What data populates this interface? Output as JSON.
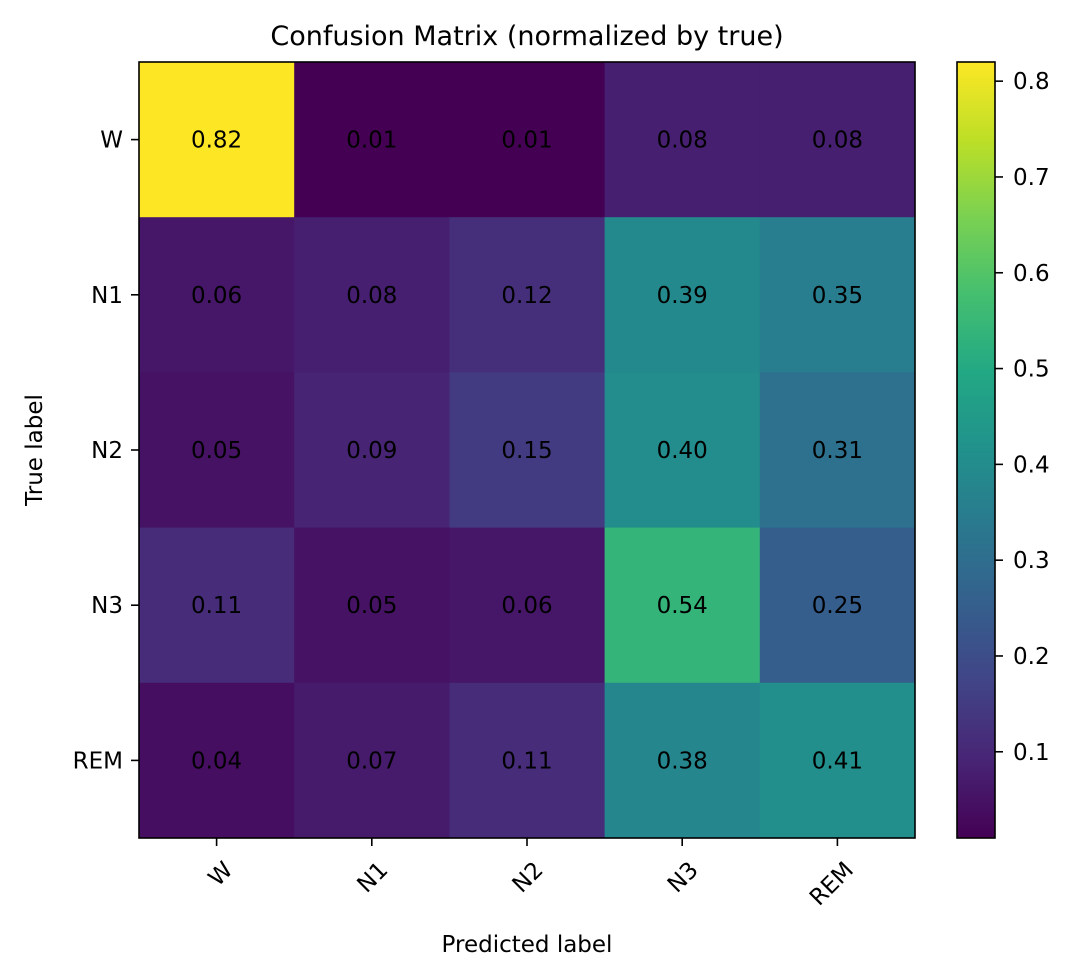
{
  "chart_data": {
    "type": "heatmap",
    "title": "Confusion Matrix (normalized by true)",
    "xlabel": "Predicted label",
    "ylabel": "True label",
    "x_categories": [
      "W",
      "N1",
      "N2",
      "N3",
      "REM"
    ],
    "y_categories": [
      "W",
      "N1",
      "N2",
      "N3",
      "REM"
    ],
    "values": [
      [
        0.82,
        0.01,
        0.01,
        0.08,
        0.08
      ],
      [
        0.06,
        0.08,
        0.12,
        0.39,
        0.35
      ],
      [
        0.05,
        0.09,
        0.15,
        0.4,
        0.31
      ],
      [
        0.11,
        0.05,
        0.06,
        0.54,
        0.25
      ],
      [
        0.04,
        0.07,
        0.11,
        0.38,
        0.41
      ]
    ],
    "value_labels": [
      [
        "0.82",
        "0.01",
        "0.01",
        "0.08",
        "0.08"
      ],
      [
        "0.06",
        "0.08",
        "0.12",
        "0.39",
        "0.35"
      ],
      [
        "0.05",
        "0.09",
        "0.15",
        "0.40",
        "0.31"
      ],
      [
        "0.11",
        "0.05",
        "0.06",
        "0.54",
        "0.25"
      ],
      [
        "0.04",
        "0.07",
        "0.11",
        "0.38",
        "0.41"
      ]
    ],
    "colormap": "viridis",
    "color_range": [
      0.01,
      0.82
    ],
    "colorbar_ticks": [
      0.1,
      0.2,
      0.3,
      0.4,
      0.5,
      0.6,
      0.7,
      0.8
    ],
    "colorbar_tick_labels": [
      "0.1",
      "0.2",
      "0.3",
      "0.4",
      "0.5",
      "0.6",
      "0.7",
      "0.8"
    ],
    "colorbar_placement": "right",
    "grid": false,
    "x_tick_rotation": 45
  }
}
